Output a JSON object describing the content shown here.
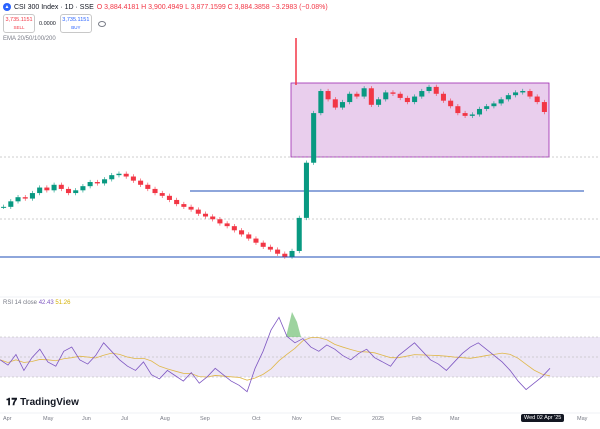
{
  "header": {
    "symbol_line": "CSI 300 Index · 1D · SSE",
    "ohlc": "O 3,884.4181  H 3,900.4949  L 3,877.1599  C 3,884.3858  −3.2983 (−0.08%)",
    "sell_price": "3,735.1151",
    "sell_label": "SELL",
    "spread": "0.0000",
    "buy_price": "3,735.1151",
    "buy_label": "BUY",
    "ema": "EMA 20/50/100/200"
  },
  "rsi": {
    "label": "RSI 14 close",
    "value1": "42.43",
    "value2": "51.26"
  },
  "branding": {
    "name": "TradingView"
  },
  "xaxis": {
    "labels": [
      "Apr",
      "May",
      "Jun",
      "Jul",
      "Aug",
      "Sep",
      "Oct",
      "Nov",
      "Dec",
      "2025",
      "Feb",
      "Mar",
      "Wed 02 Apr '25",
      "May"
    ]
  },
  "colors": {
    "up": "#089981",
    "down": "#f23645",
    "box_fill": "#e1bee7",
    "box_stroke": "#9c27b0",
    "level_line": "#1e4db7",
    "rsi_line": "#7e57c2",
    "rsi_ma": "#e0b84b"
  },
  "chart_data": {
    "type": "candlestick",
    "price_series": [
      3540,
      3560,
      3575,
      3570,
      3590,
      3610,
      3600,
      3620,
      3605,
      3590,
      3600,
      3615,
      3630,
      3625,
      3640,
      3655,
      3660,
      3650,
      3635,
      3620,
      3605,
      3590,
      3580,
      3565,
      3550,
      3540,
      3530,
      3515,
      3505,
      3495,
      3480,
      3470,
      3455,
      3440,
      3425,
      3410,
      3395,
      3385,
      3370,
      3360,
      3380,
      3500,
      3700,
      3880,
      3960,
      3930,
      3900,
      3920,
      3950,
      3940,
      3970,
      3910,
      3930,
      3955,
      3950,
      3935,
      3920,
      3940,
      3960,
      3975,
      3950,
      3925,
      3905,
      3880,
      3870,
      3875,
      3895,
      3905,
      3915,
      3930,
      3945,
      3955,
      3960,
      3940,
      3920,
      3884
    ],
    "rsi_series": [
      50,
      45,
      55,
      40,
      52,
      60,
      48,
      44,
      58,
      62,
      50,
      46,
      54,
      66,
      58,
      50,
      44,
      40,
      48,
      36,
      32,
      40,
      35,
      30,
      38,
      28,
      34,
      42,
      36,
      30,
      26,
      20,
      42,
      58,
      78,
      90,
      72,
      66,
      70,
      62,
      58,
      64,
      60,
      54,
      50,
      56,
      60,
      52,
      48,
      44,
      54,
      60,
      66,
      58,
      50,
      46,
      40,
      48,
      56,
      62,
      66,
      60,
      54,
      48,
      40,
      30,
      22,
      28,
      34,
      42
    ],
    "resistance_box_high": 3960,
    "resistance_box_low": 3870,
    "support_level": 3735,
    "low_level": 3550
  }
}
